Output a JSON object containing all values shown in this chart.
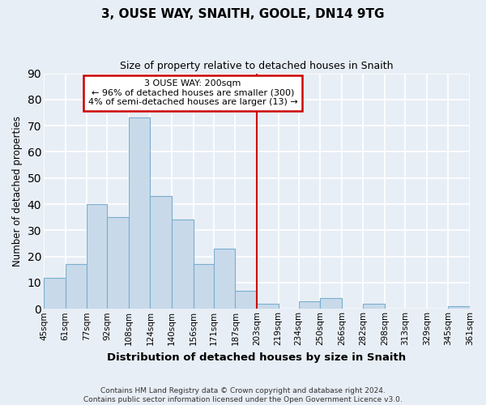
{
  "title": "3, OUSE WAY, SNAITH, GOOLE, DN14 9TG",
  "subtitle": "Size of property relative to detached houses in Snaith",
  "xlabel": "Distribution of detached houses by size in Snaith",
  "ylabel": "Number of detached properties",
  "bar_color": "#c8daea",
  "bar_edge_color": "#7aaecf",
  "background_color": "#e8eef5",
  "grid_color": "#ffffff",
  "bins": [
    45,
    61,
    77,
    92,
    108,
    124,
    140,
    156,
    171,
    187,
    203,
    219,
    234,
    250,
    266,
    282,
    298,
    313,
    329,
    345,
    361
  ],
  "counts": [
    12,
    17,
    40,
    35,
    73,
    43,
    34,
    17,
    23,
    7,
    2,
    0,
    3,
    4,
    0,
    2,
    0,
    0,
    0,
    1
  ],
  "tick_labels": [
    "45sqm",
    "61sqm",
    "77sqm",
    "92sqm",
    "108sqm",
    "124sqm",
    "140sqm",
    "156sqm",
    "171sqm",
    "187sqm",
    "203sqm",
    "219sqm",
    "234sqm",
    "250sqm",
    "266sqm",
    "282sqm",
    "298sqm",
    "313sqm",
    "329sqm",
    "345sqm",
    "361sqm"
  ],
  "vline_x": 203,
  "vline_color": "#cc0000",
  "annotation_title": "3 OUSE WAY: 200sqm",
  "annotation_line1": "← 96% of detached houses are smaller (300)",
  "annotation_line2": "4% of semi-detached houses are larger (13) →",
  "annotation_box_edge_color": "#cc0000",
  "ylim": [
    0,
    90
  ],
  "yticks": [
    0,
    10,
    20,
    30,
    40,
    50,
    60,
    70,
    80,
    90
  ],
  "footer1": "Contains HM Land Registry data © Crown copyright and database right 2024.",
  "footer2": "Contains public sector information licensed under the Open Government Licence v3.0."
}
